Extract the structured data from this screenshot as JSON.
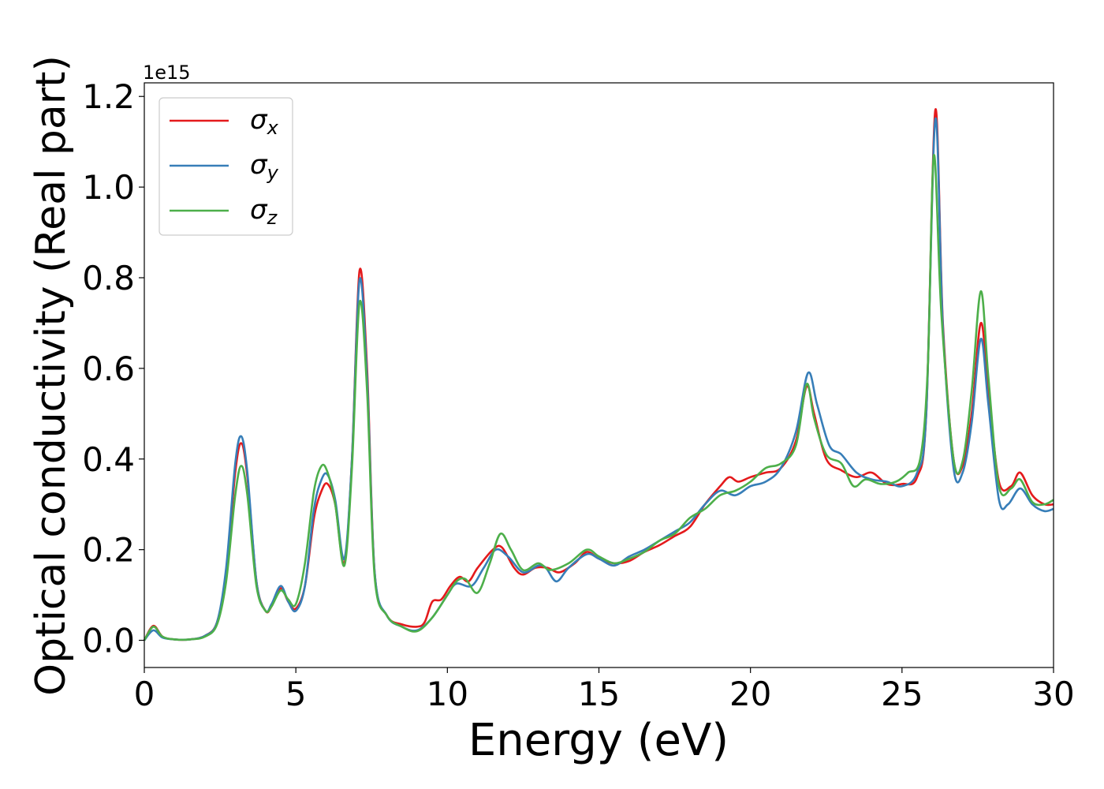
{
  "chart_data": {
    "type": "line",
    "xlabel": "Energy (eV)",
    "ylabel": "Optical conductivity (Real part)",
    "offset_text": "1e15",
    "xlim": [
      0,
      30
    ],
    "ylim": [
      -0.06,
      1.23
    ],
    "x_ticks": [
      0,
      5,
      10,
      15,
      20,
      25,
      30
    ],
    "x_tick_labels": [
      "0",
      "5",
      "10",
      "15",
      "20",
      "25",
      "30"
    ],
    "y_ticks": [
      0.0,
      0.2,
      0.4,
      0.6,
      0.8,
      1.0,
      1.2
    ],
    "y_tick_labels": [
      "0.0",
      "0.2",
      "0.4",
      "0.6",
      "0.8",
      "1.0",
      "1.2"
    ],
    "grid": false,
    "legend_position": "upper-left",
    "series": [
      {
        "name": "σx",
        "symbol": "σ",
        "subscript": "x",
        "color": "#e41a1c",
        "points": [
          [
            0,
            0
          ],
          [
            0.3,
            0.032
          ],
          [
            0.6,
            0.008
          ],
          [
            1,
            0.002
          ],
          [
            1.5,
            0.002
          ],
          [
            2,
            0.01
          ],
          [
            2.4,
            0.04
          ],
          [
            2.7,
            0.15
          ],
          [
            3.0,
            0.37
          ],
          [
            3.2,
            0.435
          ],
          [
            3.4,
            0.36
          ],
          [
            3.7,
            0.13
          ],
          [
            4.0,
            0.065
          ],
          [
            4.2,
            0.075
          ],
          [
            4.5,
            0.115
          ],
          [
            4.75,
            0.085
          ],
          [
            5.0,
            0.07
          ],
          [
            5.3,
            0.12
          ],
          [
            5.6,
            0.27
          ],
          [
            5.85,
            0.33
          ],
          [
            6.05,
            0.345
          ],
          [
            6.3,
            0.3
          ],
          [
            6.6,
            0.17
          ],
          [
            6.85,
            0.4
          ],
          [
            7.1,
            0.815
          ],
          [
            7.35,
            0.6
          ],
          [
            7.6,
            0.15
          ],
          [
            8.0,
            0.055
          ],
          [
            8.5,
            0.035
          ],
          [
            9.0,
            0.03
          ],
          [
            9.25,
            0.04
          ],
          [
            9.5,
            0.085
          ],
          [
            9.8,
            0.09
          ],
          [
            10.1,
            0.12
          ],
          [
            10.4,
            0.14
          ],
          [
            10.7,
            0.13
          ],
          [
            11.0,
            0.16
          ],
          [
            11.5,
            0.2
          ],
          [
            11.8,
            0.205
          ],
          [
            12.2,
            0.16
          ],
          [
            12.5,
            0.145
          ],
          [
            12.9,
            0.16
          ],
          [
            13.3,
            0.16
          ],
          [
            13.7,
            0.15
          ],
          [
            14.2,
            0.17
          ],
          [
            14.6,
            0.195
          ],
          [
            15.0,
            0.18
          ],
          [
            15.5,
            0.17
          ],
          [
            16.0,
            0.175
          ],
          [
            16.5,
            0.195
          ],
          [
            17.0,
            0.21
          ],
          [
            17.5,
            0.23
          ],
          [
            18.0,
            0.25
          ],
          [
            18.5,
            0.3
          ],
          [
            19.0,
            0.34
          ],
          [
            19.3,
            0.36
          ],
          [
            19.6,
            0.35
          ],
          [
            20.0,
            0.36
          ],
          [
            20.5,
            0.37
          ],
          [
            21.0,
            0.38
          ],
          [
            21.5,
            0.44
          ],
          [
            21.85,
            0.56
          ],
          [
            22.1,
            0.5
          ],
          [
            22.5,
            0.4
          ],
          [
            23.0,
            0.375
          ],
          [
            23.5,
            0.36
          ],
          [
            24.0,
            0.37
          ],
          [
            24.5,
            0.345
          ],
          [
            25.0,
            0.345
          ],
          [
            25.5,
            0.36
          ],
          [
            25.8,
            0.5
          ],
          [
            26.1,
            1.17
          ],
          [
            26.35,
            0.7
          ],
          [
            26.7,
            0.4
          ],
          [
            27.0,
            0.385
          ],
          [
            27.3,
            0.5
          ],
          [
            27.6,
            0.7
          ],
          [
            27.85,
            0.55
          ],
          [
            28.2,
            0.35
          ],
          [
            28.6,
            0.34
          ],
          [
            28.9,
            0.37
          ],
          [
            29.3,
            0.32
          ],
          [
            29.7,
            0.3
          ],
          [
            30,
            0.3
          ]
        ]
      },
      {
        "name": "σy",
        "symbol": "σ",
        "subscript": "y",
        "color": "#377eb8",
        "points": [
          [
            0,
            0
          ],
          [
            0.3,
            0.022
          ],
          [
            0.6,
            0.006
          ],
          [
            1,
            0.002
          ],
          [
            1.5,
            0.002
          ],
          [
            2,
            0.01
          ],
          [
            2.4,
            0.04
          ],
          [
            2.7,
            0.16
          ],
          [
            3.0,
            0.39
          ],
          [
            3.2,
            0.45
          ],
          [
            3.4,
            0.37
          ],
          [
            3.7,
            0.13
          ],
          [
            4.0,
            0.065
          ],
          [
            4.2,
            0.08
          ],
          [
            4.5,
            0.12
          ],
          [
            4.75,
            0.085
          ],
          [
            5.0,
            0.065
          ],
          [
            5.3,
            0.12
          ],
          [
            5.6,
            0.29
          ],
          [
            5.85,
            0.355
          ],
          [
            6.05,
            0.365
          ],
          [
            6.3,
            0.31
          ],
          [
            6.6,
            0.18
          ],
          [
            6.85,
            0.4
          ],
          [
            7.1,
            0.795
          ],
          [
            7.35,
            0.58
          ],
          [
            7.6,
            0.15
          ],
          [
            8.0,
            0.055
          ],
          [
            8.5,
            0.03
          ],
          [
            9.0,
            0.022
          ],
          [
            9.5,
            0.05
          ],
          [
            10.0,
            0.1
          ],
          [
            10.3,
            0.125
          ],
          [
            10.8,
            0.12
          ],
          [
            11.2,
            0.16
          ],
          [
            11.6,
            0.2
          ],
          [
            12.0,
            0.185
          ],
          [
            12.5,
            0.15
          ],
          [
            13.0,
            0.165
          ],
          [
            13.25,
            0.16
          ],
          [
            13.6,
            0.13
          ],
          [
            14.0,
            0.16
          ],
          [
            14.6,
            0.19
          ],
          [
            15.0,
            0.18
          ],
          [
            15.5,
            0.165
          ],
          [
            16.0,
            0.185
          ],
          [
            16.5,
            0.2
          ],
          [
            17.0,
            0.22
          ],
          [
            17.5,
            0.24
          ],
          [
            18.0,
            0.26
          ],
          [
            18.5,
            0.3
          ],
          [
            19.0,
            0.33
          ],
          [
            19.5,
            0.32
          ],
          [
            20.0,
            0.34
          ],
          [
            20.5,
            0.35
          ],
          [
            21.0,
            0.38
          ],
          [
            21.5,
            0.46
          ],
          [
            21.9,
            0.59
          ],
          [
            22.2,
            0.52
          ],
          [
            22.6,
            0.43
          ],
          [
            23.0,
            0.41
          ],
          [
            23.5,
            0.37
          ],
          [
            24.0,
            0.355
          ],
          [
            24.5,
            0.35
          ],
          [
            25.0,
            0.34
          ],
          [
            25.5,
            0.37
          ],
          [
            25.8,
            0.5
          ],
          [
            26.1,
            1.15
          ],
          [
            26.35,
            0.69
          ],
          [
            26.7,
            0.38
          ],
          [
            27.0,
            0.37
          ],
          [
            27.3,
            0.48
          ],
          [
            27.6,
            0.665
          ],
          [
            27.85,
            0.52
          ],
          [
            28.2,
            0.31
          ],
          [
            28.5,
            0.3
          ],
          [
            28.9,
            0.335
          ],
          [
            29.3,
            0.3
          ],
          [
            29.7,
            0.285
          ],
          [
            30,
            0.29
          ]
        ]
      },
      {
        "name": "σz",
        "symbol": "σ",
        "subscript": "z",
        "color": "#4daf4a",
        "points": [
          [
            0,
            0
          ],
          [
            0.3,
            0.03
          ],
          [
            0.6,
            0.008
          ],
          [
            1,
            0.002
          ],
          [
            1.5,
            0.002
          ],
          [
            2,
            0.008
          ],
          [
            2.4,
            0.035
          ],
          [
            2.7,
            0.13
          ],
          [
            3.0,
            0.32
          ],
          [
            3.2,
            0.385
          ],
          [
            3.4,
            0.32
          ],
          [
            3.7,
            0.12
          ],
          [
            4.0,
            0.065
          ],
          [
            4.2,
            0.075
          ],
          [
            4.5,
            0.11
          ],
          [
            4.75,
            0.09
          ],
          [
            5.0,
            0.08
          ],
          [
            5.3,
            0.17
          ],
          [
            5.6,
            0.33
          ],
          [
            5.85,
            0.385
          ],
          [
            6.05,
            0.37
          ],
          [
            6.3,
            0.3
          ],
          [
            6.6,
            0.165
          ],
          [
            6.85,
            0.38
          ],
          [
            7.1,
            0.745
          ],
          [
            7.35,
            0.55
          ],
          [
            7.6,
            0.14
          ],
          [
            8.0,
            0.055
          ],
          [
            8.5,
            0.03
          ],
          [
            9.0,
            0.02
          ],
          [
            9.5,
            0.05
          ],
          [
            10.0,
            0.1
          ],
          [
            10.3,
            0.13
          ],
          [
            10.6,
            0.135
          ],
          [
            11.0,
            0.105
          ],
          [
            11.4,
            0.17
          ],
          [
            11.75,
            0.235
          ],
          [
            12.1,
            0.2
          ],
          [
            12.5,
            0.155
          ],
          [
            13.0,
            0.17
          ],
          [
            13.4,
            0.155
          ],
          [
            14.0,
            0.17
          ],
          [
            14.6,
            0.2
          ],
          [
            15.0,
            0.185
          ],
          [
            15.5,
            0.17
          ],
          [
            16.0,
            0.18
          ],
          [
            16.5,
            0.195
          ],
          [
            17.0,
            0.22
          ],
          [
            17.5,
            0.235
          ],
          [
            18.0,
            0.27
          ],
          [
            18.5,
            0.29
          ],
          [
            19.0,
            0.32
          ],
          [
            19.5,
            0.33
          ],
          [
            20.0,
            0.35
          ],
          [
            20.5,
            0.38
          ],
          [
            21.0,
            0.39
          ],
          [
            21.5,
            0.43
          ],
          [
            21.85,
            0.565
          ],
          [
            22.1,
            0.49
          ],
          [
            22.5,
            0.41
          ],
          [
            23.0,
            0.39
          ],
          [
            23.4,
            0.34
          ],
          [
            23.8,
            0.355
          ],
          [
            24.3,
            0.345
          ],
          [
            24.8,
            0.35
          ],
          [
            25.2,
            0.37
          ],
          [
            25.6,
            0.4
          ],
          [
            25.85,
            0.6
          ],
          [
            26.05,
            1.07
          ],
          [
            26.3,
            0.72
          ],
          [
            26.7,
            0.4
          ],
          [
            27.0,
            0.395
          ],
          [
            27.3,
            0.55
          ],
          [
            27.6,
            0.77
          ],
          [
            27.85,
            0.58
          ],
          [
            28.2,
            0.34
          ],
          [
            28.6,
            0.335
          ],
          [
            28.9,
            0.355
          ],
          [
            29.3,
            0.305
          ],
          [
            29.7,
            0.3
          ],
          [
            30,
            0.31
          ]
        ]
      }
    ]
  }
}
